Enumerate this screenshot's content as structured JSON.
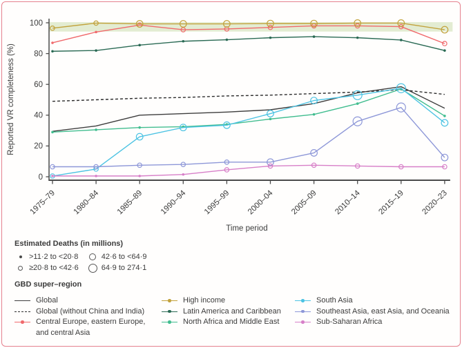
{
  "figure": {
    "border_color": "#e5808d",
    "background": "#fffefd"
  },
  "chart_data": {
    "type": "line",
    "title": "",
    "xlabel": "Time period",
    "ylabel": "Reported VR completeness (%)",
    "ylim": [
      0,
      100
    ],
    "yticks": [
      0,
      20,
      40,
      60,
      80,
      100
    ],
    "grid": false,
    "legend_position": "bottom",
    "categories": [
      "1975–79",
      "1980–84",
      "1985–89",
      "1990–94",
      "1995–99",
      "2000–04",
      "2005–09",
      "2010–14",
      "2015–19",
      "2020–23"
    ],
    "band": {
      "from": 94.3,
      "to": 100.4,
      "color": "#d9e6c3",
      "opacity": 0.75
    },
    "marker_size_meaning": "Estimated deaths (in millions); larger circle = more deaths",
    "marker_size_classes": {
      "1": ">11·2 to <20·8",
      "2": "≥20·8 to <42·6",
      "3": "42·6 to <64·9",
      "4": "64·9 to 274·1"
    },
    "series": [
      {
        "name": "Global",
        "color": "#3d3d3d",
        "dash": "solid",
        "marker": "none",
        "values": [
          29.5,
          33,
          40,
          41,
          42,
          43.5,
          47.5,
          54.5,
          58.5,
          44.5
        ],
        "marker_sizes": [
          0,
          0,
          0,
          0,
          0,
          0,
          0,
          0,
          0,
          0
        ]
      },
      {
        "name": "Global (without China and India)",
        "color": "#2b2b2b",
        "dash": "dashed",
        "marker": "none",
        "values": [
          49,
          50,
          51,
          51.5,
          52.5,
          53,
          54,
          55,
          56.5,
          53.5
        ],
        "marker_sizes": [
          0,
          0,
          0,
          0,
          0,
          0,
          0,
          0,
          0,
          0
        ]
      },
      {
        "name": "Central Europe, eastern Europe, and central Asia",
        "color": "#f0696c",
        "dash": "solid",
        "marker": "circle",
        "values": [
          87,
          94,
          98.5,
          95.5,
          96,
          97,
          98,
          98,
          97.5,
          86.5
        ],
        "marker_sizes": [
          1,
          1,
          2,
          2,
          2,
          2,
          2,
          2,
          2,
          2
        ]
      },
      {
        "name": "High income",
        "color": "#c2a23c",
        "dash": "solid",
        "marker": "circle",
        "values": [
          96.5,
          99.8,
          99.3,
          99.3,
          99.3,
          99.5,
          99.5,
          99.8,
          99.8,
          95.5
        ],
        "marker_sizes": [
          2,
          2,
          3,
          3,
          3,
          3,
          3,
          3,
          3,
          3
        ]
      },
      {
        "name": "Latin America and Caribbean",
        "color": "#2a6a54",
        "dash": "solid",
        "marker": "dot",
        "values": [
          81.5,
          82,
          85.5,
          88,
          89,
          90.3,
          91,
          90.3,
          88.8,
          82
        ],
        "marker_sizes": [
          1,
          1,
          1,
          1,
          1,
          1,
          1,
          1,
          1,
          1
        ]
      },
      {
        "name": "North Africa and Middle East",
        "color": "#41bd8f",
        "dash": "solid",
        "marker": "dot",
        "values": [
          29,
          30.5,
          32,
          32.5,
          34,
          37.5,
          40.5,
          47.5,
          57,
          39.5
        ],
        "marker_sizes": [
          1,
          1,
          1,
          1,
          1,
          1,
          1,
          1,
          1,
          1
        ]
      },
      {
        "name": "South Asia",
        "color": "#4cc3e3",
        "dash": "solid",
        "marker": "circle",
        "values": [
          0.5,
          5,
          26,
          32,
          33.5,
          41,
          49.5,
          53,
          57.5,
          35
        ],
        "marker_sizes": [
          2,
          2,
          3,
          3,
          3,
          3,
          3,
          4,
          4,
          3
        ]
      },
      {
        "name": "Southeast Asia, east Asia, and Oceania",
        "color": "#8d97d8",
        "dash": "solid",
        "marker": "circle",
        "values": [
          6.5,
          6.5,
          7.5,
          8,
          9.5,
          9.5,
          15.5,
          36,
          45,
          12.5
        ],
        "marker_sizes": [
          2,
          2,
          2,
          2,
          2,
          3,
          3,
          4,
          4,
          3
        ]
      },
      {
        "name": "Sub-Saharan Africa",
        "color": "#d77fc8",
        "dash": "solid",
        "marker": "circle",
        "values": [
          0.5,
          0.5,
          0.5,
          1.5,
          4.5,
          7,
          7.5,
          7,
          6.5,
          6.5
        ],
        "marker_sizes": [
          1,
          1,
          1,
          1,
          2,
          2,
          2,
          2,
          2,
          2
        ]
      }
    ]
  },
  "legend": {
    "deaths": {
      "title": "Estimated Deaths (in millions)",
      "items": [
        {
          "size": 1,
          "label": ">11·2 to <20·8"
        },
        {
          "size": 2,
          "label": "≥20·8 to <42·6"
        },
        {
          "size": 3,
          "label": "42·6 to <64·9"
        },
        {
          "size": 4,
          "label": "64·9 to 274·1"
        }
      ]
    },
    "gbd": {
      "title": "GBD super–region"
    }
  }
}
